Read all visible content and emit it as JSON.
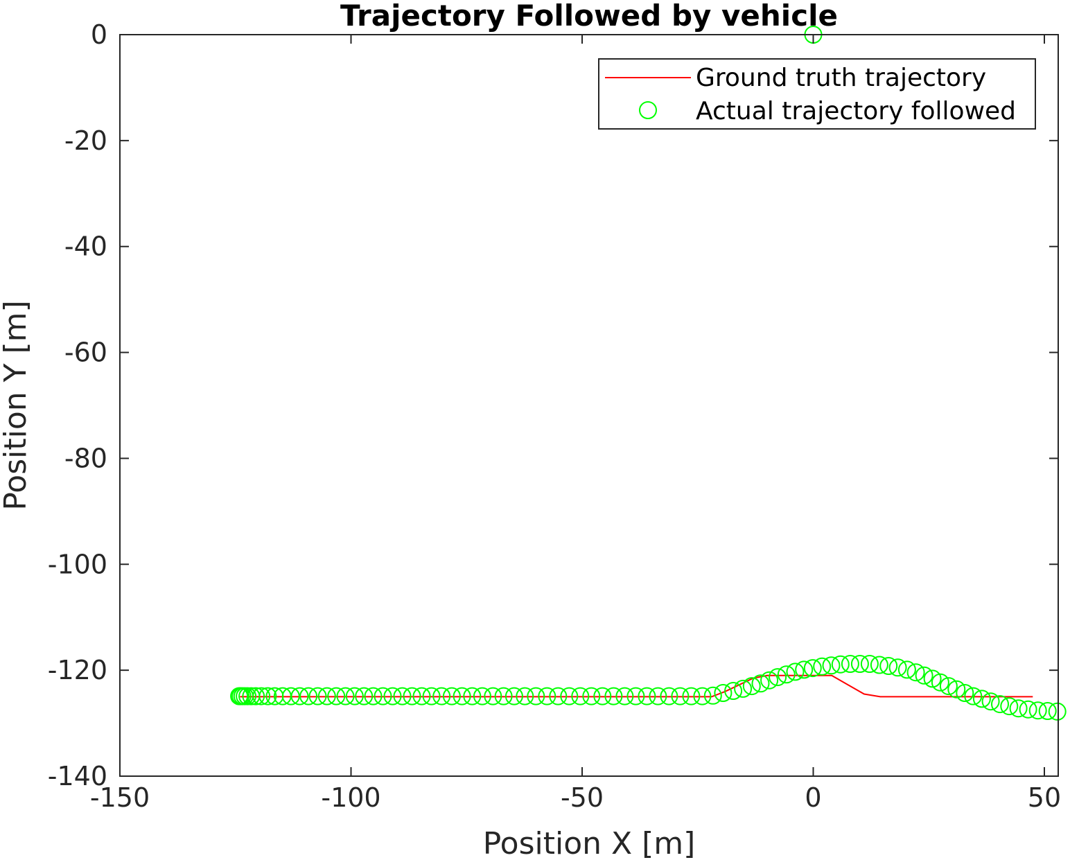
{
  "chart_data": {
    "type": "line",
    "title": "Trajectory Followed by vehicle",
    "xlabel": "Position X [m]",
    "ylabel": "Position Y [m]",
    "xlim": [
      -150,
      53
    ],
    "ylim": [
      -140,
      0
    ],
    "x_ticks": [
      -150,
      -100,
      -50,
      0,
      50
    ],
    "y_ticks": [
      0,
      -20,
      -40,
      -60,
      -80,
      -100,
      -120,
      -140
    ],
    "x_tick_labels": [
      "-150",
      "-100",
      "-50",
      "0",
      "50"
    ],
    "y_tick_labels": [
      "0",
      "-20",
      "-40",
      "-60",
      "-80",
      "-100",
      "-120",
      "-140"
    ],
    "grid": false,
    "legend_position": "top-right",
    "series": [
      {
        "name": "Ground truth trajectory",
        "style": "line",
        "color": "#ff0000",
        "points": [
          [
            -124,
            -125
          ],
          [
            -22,
            -125
          ],
          [
            -19,
            -124
          ],
          [
            -13,
            -121.5
          ],
          [
            -10,
            -121
          ],
          [
            4,
            -121
          ],
          [
            7,
            -122.5
          ],
          [
            11,
            -124.5
          ],
          [
            14.5,
            -125
          ],
          [
            47.5,
            -125
          ]
        ]
      },
      {
        "name": "Actual trajectory followed",
        "style": "markers",
        "marker": "circle",
        "color": "#00ff00",
        "points": [
          [
            0,
            0
          ],
          [
            -124.2,
            -124.9
          ],
          [
            -123.9,
            -124.9
          ],
          [
            -123.5,
            -124.9
          ],
          [
            -123.0,
            -124.9
          ],
          [
            -122.4,
            -124.9
          ],
          [
            -121.6,
            -124.9
          ],
          [
            -120.6,
            -124.9
          ],
          [
            -119.4,
            -124.9
          ],
          [
            -118.0,
            -124.9
          ],
          [
            -116.5,
            -124.9
          ],
          [
            -114.8,
            -124.9
          ],
          [
            -113.0,
            -124.9
          ],
          [
            -111.1,
            -124.9
          ],
          [
            -109.2,
            -124.9
          ],
          [
            -107.2,
            -124.9
          ],
          [
            -105.2,
            -124.9
          ],
          [
            -103.2,
            -124.9
          ],
          [
            -101.2,
            -124.9
          ],
          [
            -99.2,
            -124.9
          ],
          [
            -97.2,
            -124.9
          ],
          [
            -95.2,
            -124.9
          ],
          [
            -93.1,
            -124.9
          ],
          [
            -91.0,
            -124.9
          ],
          [
            -88.9,
            -124.9
          ],
          [
            -86.8,
            -124.9
          ],
          [
            -84.7,
            -124.9
          ],
          [
            -82.6,
            -124.9
          ],
          [
            -80.4,
            -124.9
          ],
          [
            -78.2,
            -124.9
          ],
          [
            -76.0,
            -124.9
          ],
          [
            -73.8,
            -124.9
          ],
          [
            -71.6,
            -124.9
          ],
          [
            -69.3,
            -124.9
          ],
          [
            -67.0,
            -124.9
          ],
          [
            -64.7,
            -124.9
          ],
          [
            -62.4,
            -124.9
          ],
          [
            -60.0,
            -124.9
          ],
          [
            -57.6,
            -124.9
          ],
          [
            -55.2,
            -124.9
          ],
          [
            -52.8,
            -124.9
          ],
          [
            -50.4,
            -124.9
          ],
          [
            -48.0,
            -124.9
          ],
          [
            -45.6,
            -124.9
          ],
          [
            -43.2,
            -124.9
          ],
          [
            -40.8,
            -124.9
          ],
          [
            -38.4,
            -124.9
          ],
          [
            -36.0,
            -124.9
          ],
          [
            -33.6,
            -124.9
          ],
          [
            -31.2,
            -124.9
          ],
          [
            -28.8,
            -124.9
          ],
          [
            -26.4,
            -124.9
          ],
          [
            -24.0,
            -124.9
          ],
          [
            -21.7,
            -124.8
          ],
          [
            -19.5,
            -124.3
          ],
          [
            -17.3,
            -123.9
          ],
          [
            -15.2,
            -123.5
          ],
          [
            -13.3,
            -123.0
          ],
          [
            -11.4,
            -122.5
          ],
          [
            -9.5,
            -121.9
          ],
          [
            -7.7,
            -121.3
          ],
          [
            -5.8,
            -120.8
          ],
          [
            -3.9,
            -120.3
          ],
          [
            -2.0,
            -119.9
          ],
          [
            -0.1,
            -119.6
          ],
          [
            1.9,
            -119.3
          ],
          [
            3.9,
            -119.1
          ],
          [
            5.9,
            -118.9
          ],
          [
            8.0,
            -118.8
          ],
          [
            10.1,
            -118.8
          ],
          [
            12.2,
            -118.8
          ],
          [
            14.3,
            -119.0
          ],
          [
            16.3,
            -119.2
          ],
          [
            18.3,
            -119.5
          ],
          [
            20.3,
            -119.9
          ],
          [
            22.2,
            -120.4
          ],
          [
            24.0,
            -121.0
          ],
          [
            25.8,
            -121.6
          ],
          [
            27.5,
            -122.3
          ],
          [
            29.3,
            -123.0
          ],
          [
            31.0,
            -123.6
          ],
          [
            32.8,
            -124.3
          ],
          [
            34.6,
            -124.9
          ],
          [
            36.5,
            -125.4
          ],
          [
            38.4,
            -125.9
          ],
          [
            40.4,
            -126.4
          ],
          [
            42.4,
            -126.8
          ],
          [
            44.4,
            -127.2
          ],
          [
            46.5,
            -127.4
          ],
          [
            48.6,
            -127.6
          ],
          [
            50.7,
            -127.7
          ],
          [
            52.8,
            -127.8
          ]
        ]
      }
    ]
  }
}
